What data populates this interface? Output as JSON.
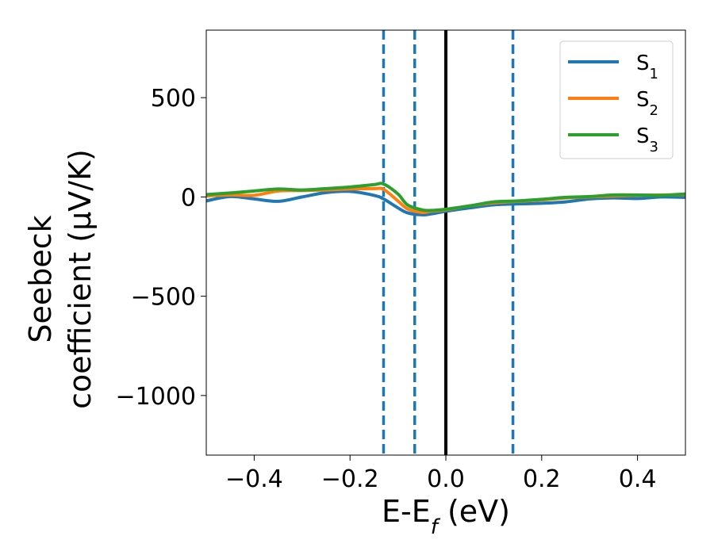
{
  "chart_data": {
    "type": "line",
    "xlabel": "E-E_f (eV)",
    "ylabel_lines": [
      "Seebeck",
      "coefficient  (μV/K)"
    ],
    "xlim": [
      -0.5,
      0.5
    ],
    "ylim": [
      -1300,
      840
    ],
    "xticks": [
      -0.4,
      -0.2,
      0.0,
      0.2,
      0.4
    ],
    "xtick_labels": [
      "−0.4",
      "−0.2",
      "0.0",
      "0.2",
      "0.4"
    ],
    "yticks": [
      500,
      0,
      -500,
      -1000
    ],
    "ytick_labels": [
      "500",
      "0",
      "−500",
      "−1000"
    ],
    "grid": false,
    "legend_position": "top-right",
    "series": [
      {
        "name": "S1",
        "legend_main": "S",
        "legend_sub": "1",
        "color": "#1f77b4",
        "x": [
          -0.5,
          -0.45,
          -0.4,
          -0.35,
          -0.3,
          -0.25,
          -0.2,
          -0.15,
          -0.13,
          -0.1,
          -0.08,
          -0.05,
          -0.03,
          0.0,
          0.05,
          0.1,
          0.15,
          0.2,
          0.25,
          0.3,
          0.35,
          0.4,
          0.45,
          0.5
        ],
        "y": [
          -20,
          2,
          -10,
          -22,
          0,
          22,
          28,
          8,
          -10,
          -55,
          -80,
          -90,
          -85,
          -72,
          -55,
          -40,
          -35,
          -32,
          -25,
          -10,
          -5,
          -8,
          0,
          -2
        ]
      },
      {
        "name": "S2",
        "legend_main": "S",
        "legend_sub": "2",
        "color": "#ff7f0e",
        "x": [
          -0.5,
          -0.45,
          -0.4,
          -0.35,
          -0.3,
          -0.25,
          -0.2,
          -0.15,
          -0.13,
          -0.1,
          -0.08,
          -0.05,
          -0.03,
          0.0,
          0.05,
          0.1,
          0.15,
          0.2,
          0.25,
          0.3,
          0.35,
          0.4,
          0.45,
          0.5
        ],
        "y": [
          5,
          10,
          8,
          30,
          32,
          35,
          40,
          42,
          38,
          -20,
          -60,
          -78,
          -72,
          -65,
          -45,
          -30,
          -22,
          -15,
          -5,
          0,
          5,
          8,
          10,
          12
        ]
      },
      {
        "name": "S3",
        "legend_main": "S",
        "legend_sub": "3",
        "color": "#2ca02c",
        "x": [
          -0.5,
          -0.45,
          -0.4,
          -0.35,
          -0.3,
          -0.25,
          -0.2,
          -0.15,
          -0.13,
          -0.1,
          -0.08,
          -0.05,
          -0.03,
          0.0,
          0.05,
          0.1,
          0.15,
          0.2,
          0.25,
          0.3,
          0.35,
          0.4,
          0.45,
          0.5
        ],
        "y": [
          12,
          20,
          30,
          40,
          35,
          42,
          50,
          62,
          65,
          15,
          -40,
          -65,
          -68,
          -62,
          -45,
          -25,
          -20,
          -12,
          -2,
          2,
          10,
          10,
          8,
          15
        ]
      }
    ],
    "vlines": [
      {
        "x": -0.13,
        "color": "#1f77b4",
        "style": "dashed"
      },
      {
        "x": -0.065,
        "color": "#1f77b4",
        "style": "dashed"
      },
      {
        "x": 0.0,
        "color": "#000000",
        "style": "solid"
      },
      {
        "x": 0.14,
        "color": "#1f77b4",
        "style": "dashed"
      }
    ]
  }
}
